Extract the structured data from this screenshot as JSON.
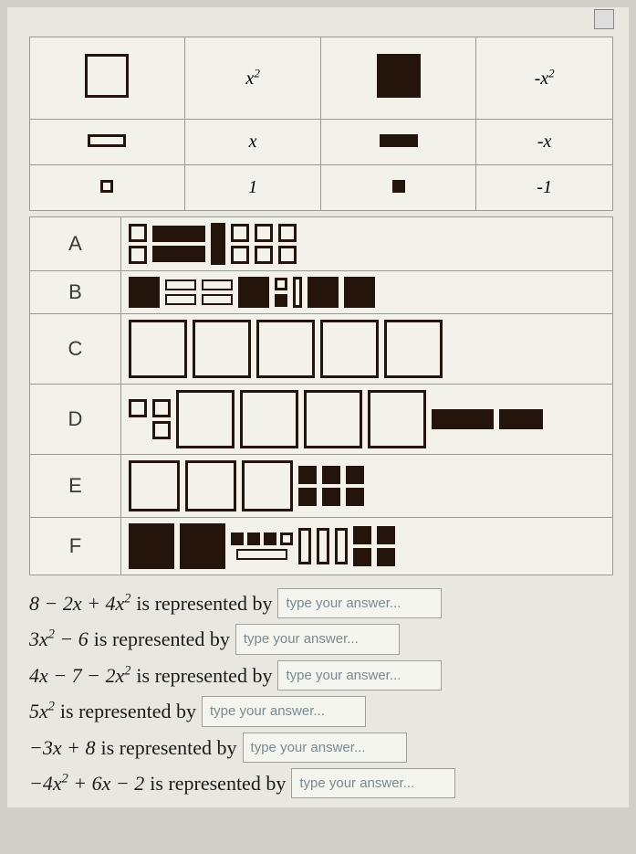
{
  "legend": {
    "rows": [
      {
        "c2": "x²",
        "c4": "-x²"
      },
      {
        "c2": "x",
        "c4": "-x"
      },
      {
        "c2": "1",
        "c4": "-1"
      }
    ]
  },
  "option_labels": [
    "A",
    "B",
    "C",
    "D",
    "E",
    "F"
  ],
  "questions": [
    {
      "expr": "8 − 2x + 4x²",
      "tail": " is represented by",
      "placeholder": "type your answer..."
    },
    {
      "expr": "3x² − 6",
      "tail": " is represented by",
      "placeholder": "type your answer..."
    },
    {
      "expr": "4x − 7 − 2x²",
      "tail": " is represented by",
      "placeholder": "type your answer..."
    },
    {
      "expr": "5x²",
      "tail": " is represented by",
      "placeholder": "type your answer..."
    },
    {
      "expr": "−3x + 8",
      "tail": " is represented by",
      "placeholder": "type your answer..."
    },
    {
      "expr": "−4x² + 6x − 2",
      "tail": " is represented by",
      "placeholder": "type your answer..."
    }
  ],
  "colors": {
    "tile_dark": "#24140c",
    "page_bg": "#e8e8e0",
    "cell_bg": "#f2f2ea",
    "border": "#9a9a90",
    "placeholder": "#7a8a90"
  }
}
